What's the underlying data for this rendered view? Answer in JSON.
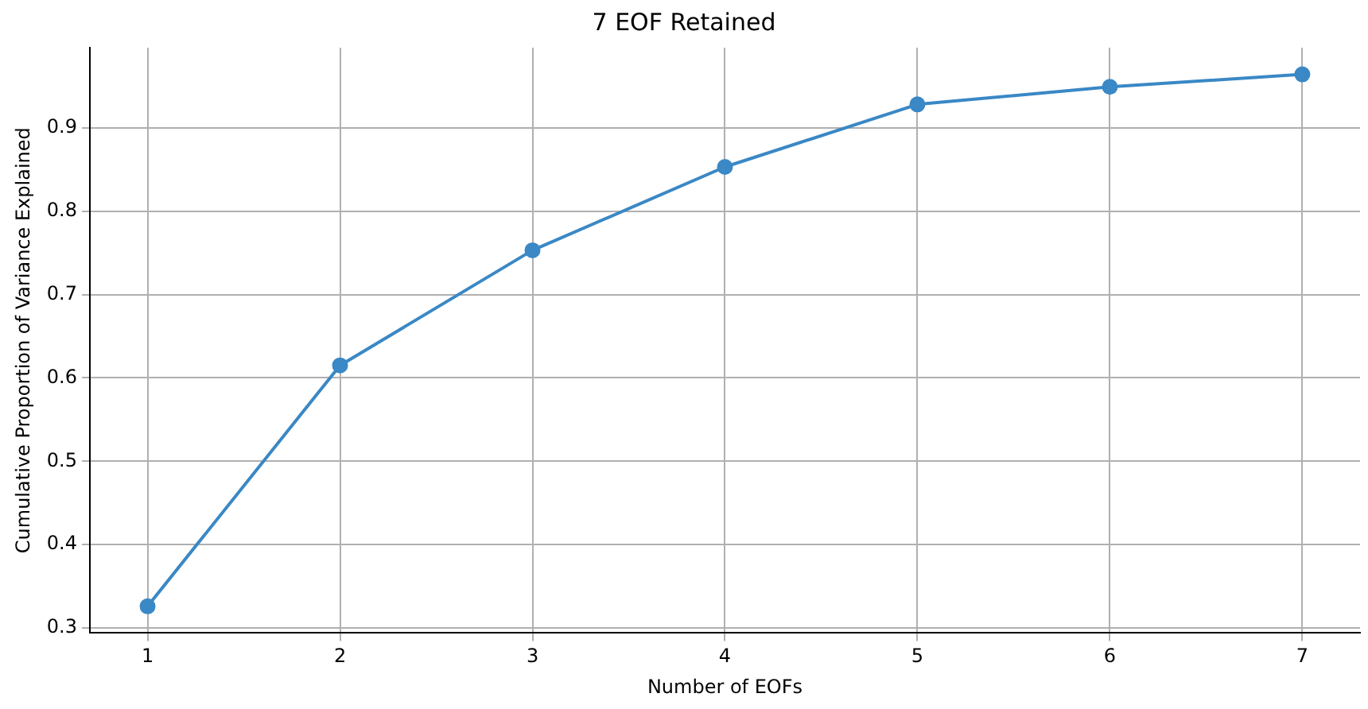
{
  "chart_data": {
    "type": "line",
    "title": "7 EOF Retained",
    "xlabel": "Number of EOFs",
    "ylabel": "Cumulative Proportion of Variance Explained",
    "x": [
      1,
      2,
      3,
      4,
      5,
      6,
      7
    ],
    "series": [
      {
        "color": "#3a88c5",
        "values": [
          0.326,
          0.615,
          0.753,
          0.853,
          0.928,
          0.949,
          0.964
        ]
      }
    ],
    "xlim": [
      0.7,
      7.3
    ],
    "xticks": [
      1,
      2,
      3,
      4,
      5,
      6,
      7
    ],
    "ylim": [
      0.294,
      0.996
    ],
    "yticks": [
      0.3,
      0.4,
      0.5,
      0.6,
      0.7,
      0.8,
      0.9
    ],
    "grid": true,
    "marker": "circle",
    "line_style": "solid",
    "legend": false
  }
}
